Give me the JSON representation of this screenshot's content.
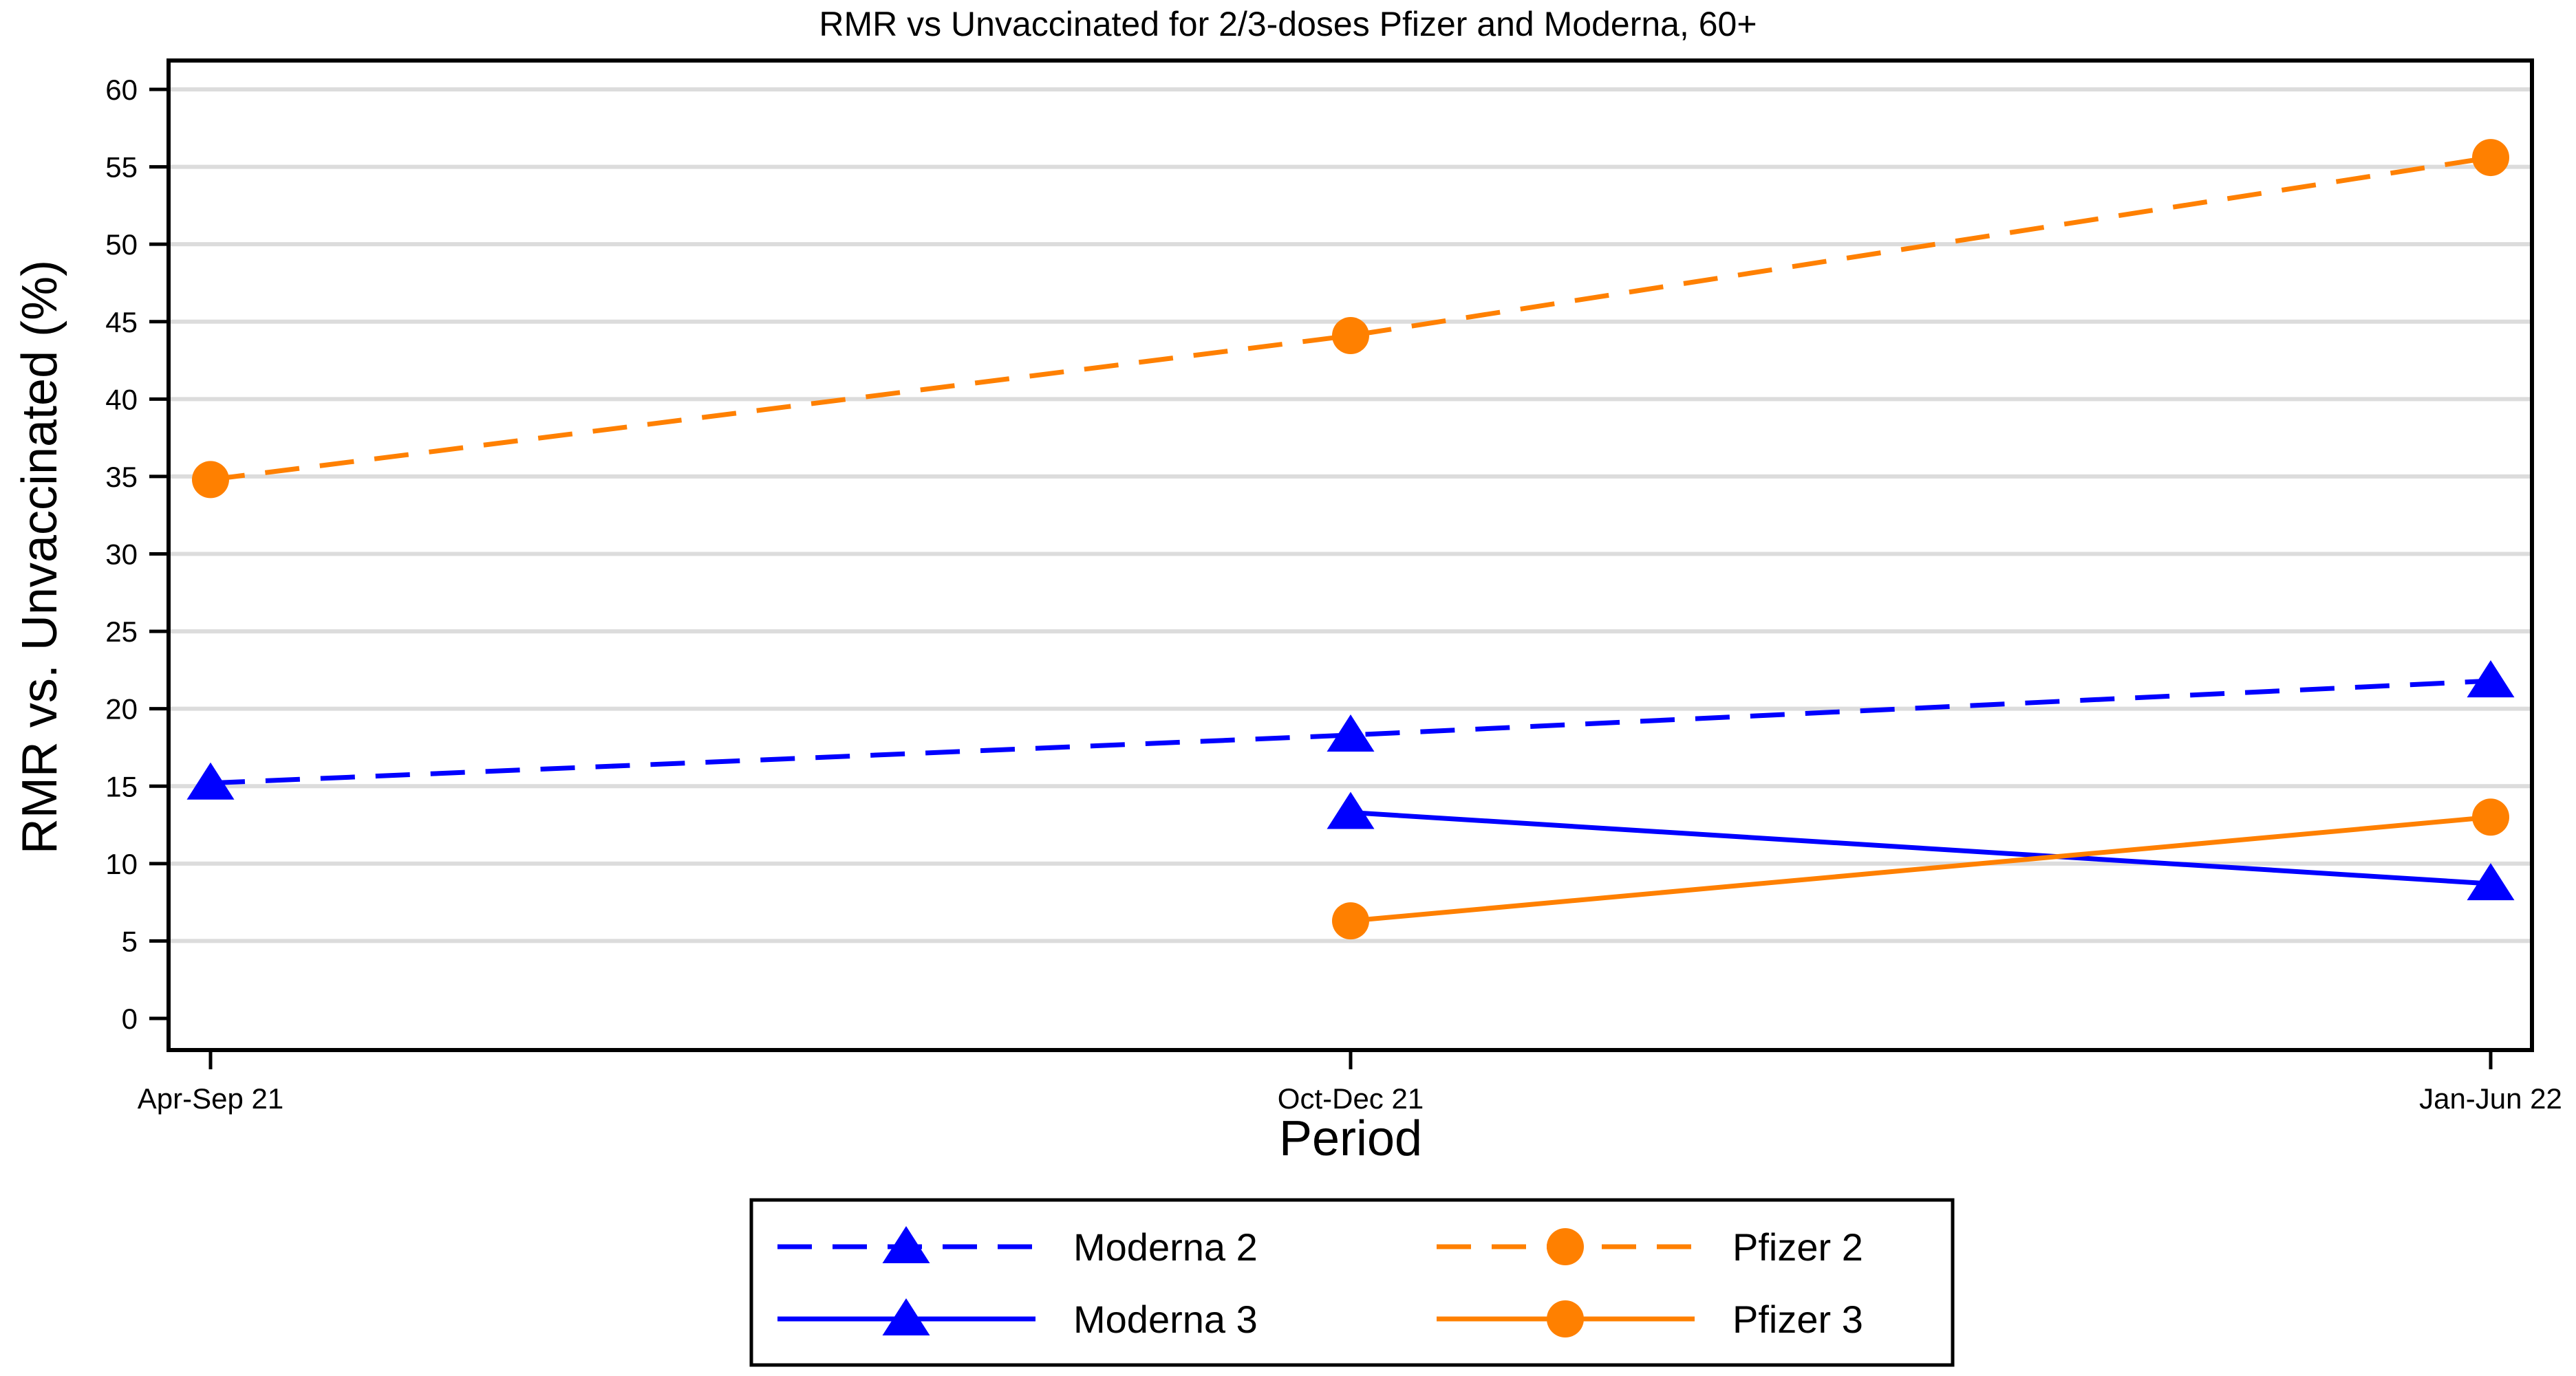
{
  "chart_data": {
    "type": "line",
    "title": "RMR vs Unvaccinated for 2/3-doses Pfizer and Moderna, 60+",
    "xlabel": "Period",
    "ylabel": "RMR vs. Unvaccinated (%)",
    "categories": [
      "Apr-Sep 21",
      "Oct-Dec 21",
      "Jan-Jun 22"
    ],
    "ylim": [
      0,
      60
    ],
    "yticks": [
      0,
      5,
      10,
      15,
      20,
      25,
      30,
      35,
      40,
      45,
      50,
      55,
      60
    ],
    "grid": true,
    "legend_position": "bottom",
    "series": [
      {
        "name": "Moderna 2",
        "values": [
          15.2,
          18.3,
          21.8
        ],
        "color": "#0000ff",
        "dash": "dashed",
        "marker": "triangle"
      },
      {
        "name": "Pfizer 2",
        "values": [
          34.8,
          44.1,
          55.6
        ],
        "color": "#ff8000",
        "dash": "dashed",
        "marker": "circle"
      },
      {
        "name": "Moderna 3",
        "values": [
          null,
          13.3,
          8.7
        ],
        "color": "#0000ff",
        "dash": "solid",
        "marker": "triangle"
      },
      {
        "name": "Pfizer 3",
        "values": [
          null,
          6.3,
          13.0
        ],
        "color": "#ff8000",
        "dash": "solid",
        "marker": "circle"
      }
    ]
  }
}
